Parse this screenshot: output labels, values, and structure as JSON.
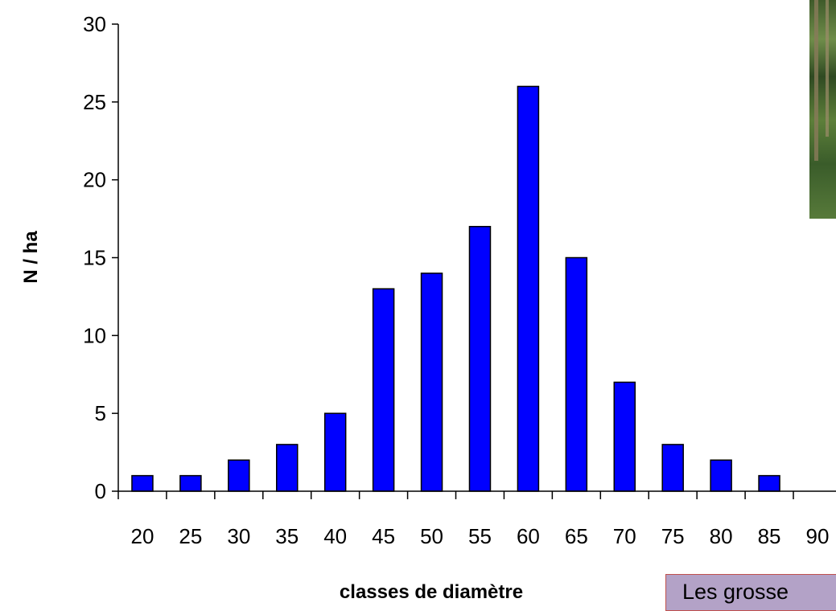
{
  "chart_data": {
    "type": "bar",
    "categories": [
      "20",
      "25",
      "30",
      "35",
      "40",
      "45",
      "50",
      "55",
      "60",
      "65",
      "70",
      "75",
      "80",
      "85",
      "90"
    ],
    "values": [
      1,
      1,
      2,
      3,
      5,
      13,
      14,
      17,
      26,
      15,
      7,
      3,
      2,
      1,
      0
    ],
    "xlabel": "classes de diamètre",
    "ylabel": "N / ha",
    "ylim": [
      0,
      30
    ],
    "yticks": [
      0,
      5,
      10,
      15,
      20,
      25,
      30
    ],
    "grid": false,
    "bar_color": "#0000ff"
  },
  "note": {
    "text": "Les grosse"
  },
  "photo": {
    "icon": "forest-photo"
  }
}
